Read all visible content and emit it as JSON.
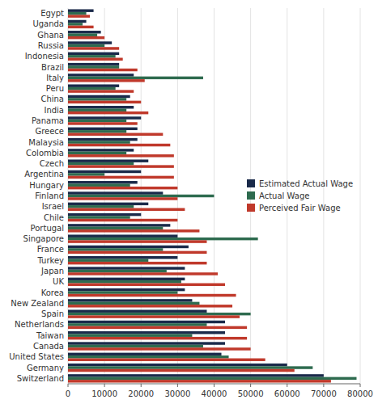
{
  "chart_data": {
    "type": "bar",
    "orientation": "horizontal",
    "categories": [
      "Egypt",
      "Uganda",
      "Ghana",
      "Russia",
      "Indonesia",
      "Brazil",
      "Italy",
      "Peru",
      "China",
      "India",
      "Panama",
      "Greece",
      "Malaysia",
      "Colombia",
      "Czech",
      "Argentina",
      "Hungary",
      "Finland",
      "Israel",
      "Chile",
      "Portugal",
      "Singapore",
      "France",
      "Turkey",
      "Japan",
      "UK",
      "Korea",
      "New Zealand",
      "Spain",
      "Netherlands",
      "Taiwan",
      "Canada",
      "United States",
      "Germany",
      "Switzerland"
    ],
    "series": [
      {
        "name": "Estimated Actual Wage",
        "color": "#1a2a4a",
        "values": [
          7000,
          5000,
          9000,
          12000,
          14000,
          14000,
          18000,
          14000,
          17000,
          18000,
          20000,
          19000,
          19000,
          18000,
          22000,
          20000,
          19000,
          26000,
          22000,
          20000,
          28000,
          30000,
          33000,
          30000,
          32000,
          32000,
          32000,
          34000,
          38000,
          43000,
          43000,
          43000,
          42000,
          60000,
          70000
        ]
      },
      {
        "name": "Actual Wage",
        "color": "#2e6b4f",
        "values": [
          5000,
          4000,
          8000,
          10000,
          13000,
          14000,
          37000,
          13000,
          16000,
          16000,
          16000,
          16000,
          17000,
          16000,
          18000,
          10000,
          17000,
          40000,
          18000,
          17000,
          26000,
          52000,
          26000,
          22000,
          27000,
          31000,
          30000,
          36000,
          50000,
          38000,
          34000,
          37000,
          44000,
          67000,
          79000
        ]
      },
      {
        "name": "Perceived Fair Wage",
        "color": "#c0392b",
        "values": [
          6000,
          7000,
          10000,
          14000,
          15000,
          19000,
          21000,
          18000,
          20000,
          22000,
          19000,
          26000,
          28000,
          29000,
          29000,
          29000,
          30000,
          30000,
          32000,
          30000,
          36000,
          38000,
          38000,
          38000,
          41000,
          43000,
          46000,
          45000,
          47000,
          49000,
          49000,
          50000,
          54000,
          62000,
          72000
        ]
      }
    ],
    "xlim": [
      0,
      80000
    ],
    "xticks": [
      0,
      10000,
      20000,
      30000,
      40000,
      50000,
      60000,
      70000,
      80000
    ],
    "grid": true,
    "legend": "right"
  }
}
